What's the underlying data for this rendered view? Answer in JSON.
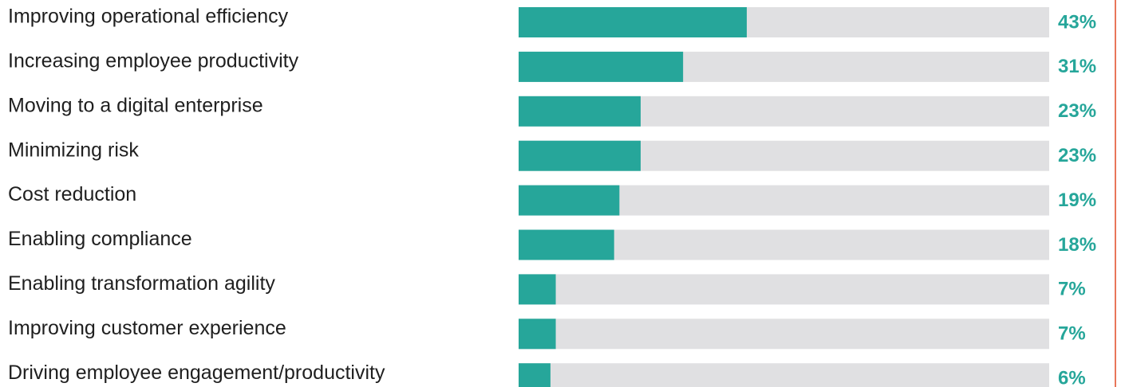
{
  "chart_data": {
    "type": "bar",
    "orientation": "horizontal",
    "categories": [
      "Improving operational efficiency",
      "Increasing employee productivity",
      "Moving to a digital enterprise",
      "Minimizing risk",
      "Cost reduction",
      "Enabling compliance",
      "Enabling transformation agility",
      "Improving customer experience",
      "Driving employee engagement/productivity"
    ],
    "values": [
      43,
      31,
      23,
      23,
      19,
      18,
      7,
      7,
      6
    ],
    "value_labels": [
      "43%",
      "31%",
      "23%",
      "23%",
      "19%",
      "18%",
      "7%",
      "7%",
      "6%"
    ],
    "xlim": [
      0,
      100
    ],
    "title": "",
    "xlabel": "",
    "ylabel": "",
    "grid": false,
    "legend": "none"
  },
  "colors": {
    "bar": "#26a69a",
    "track": "#e0e0e2",
    "value_text": "#26a69a",
    "label_text": "#1f1f1f",
    "divider": "#e8765a"
  }
}
